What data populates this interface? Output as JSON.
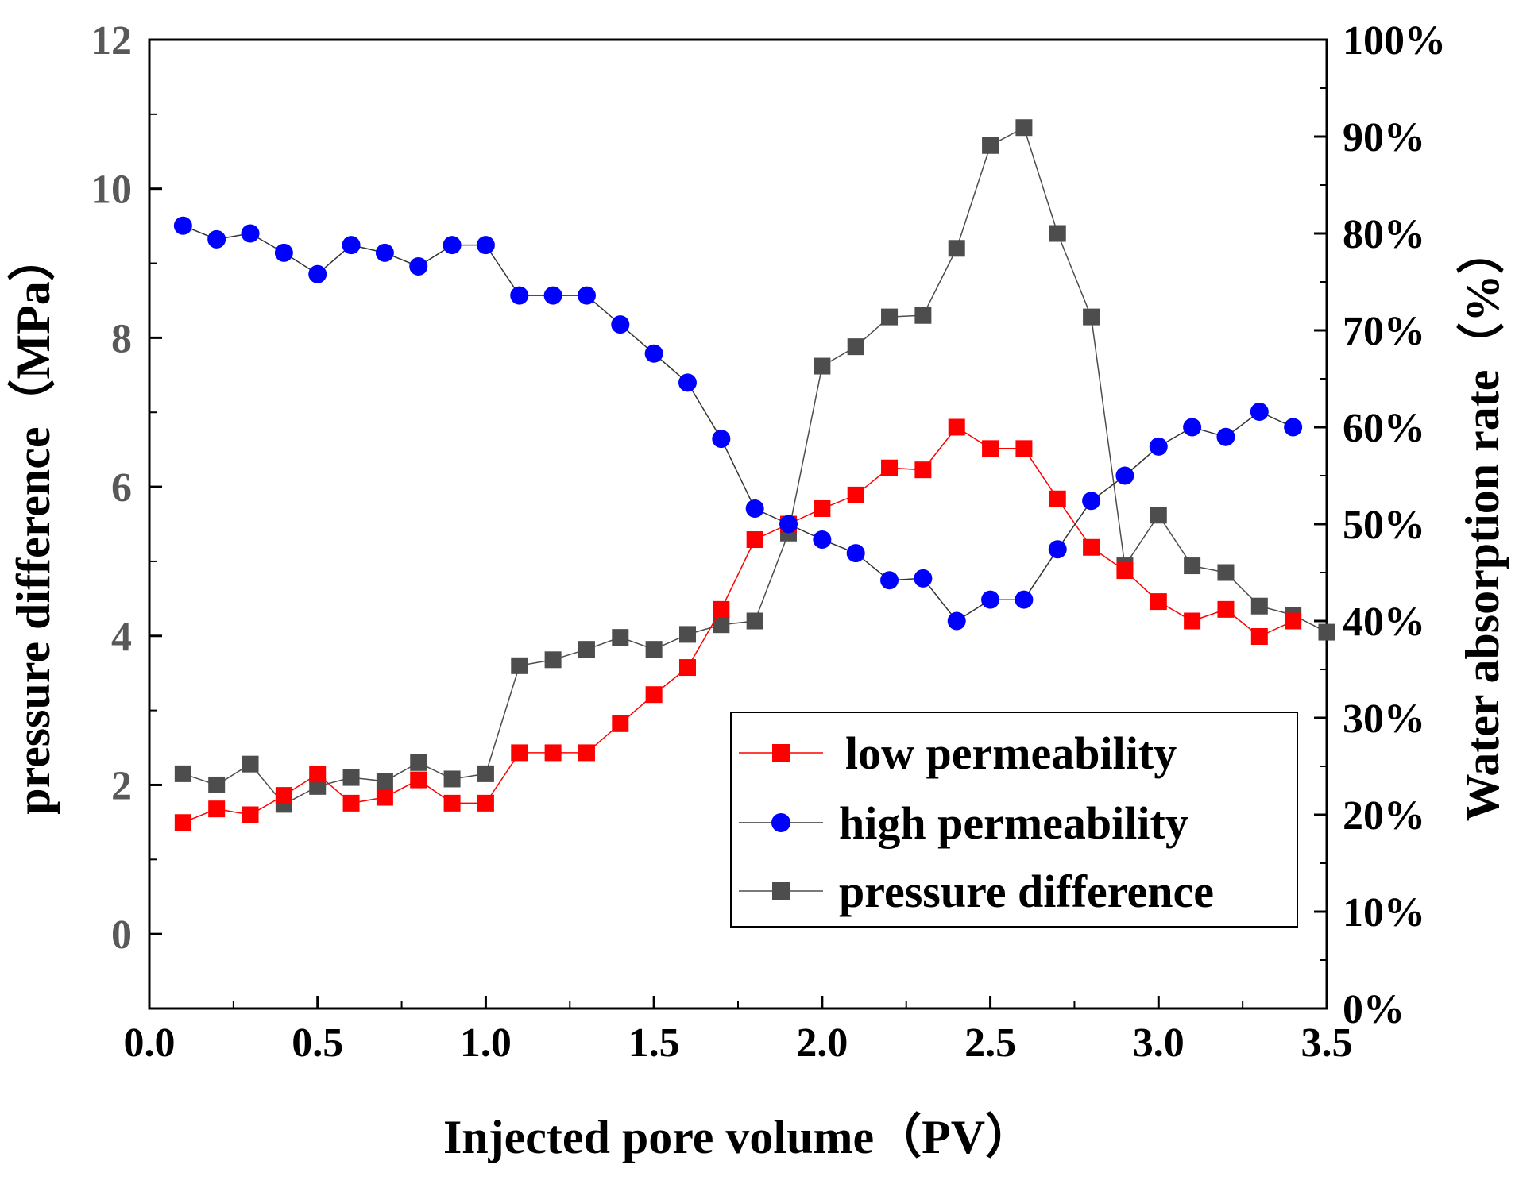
{
  "chart_data": {
    "type": "line",
    "xlabel": "Injected pore volume（PV）",
    "ylabel_left": "pressure difference（MPa）",
    "ylabel_right": "Water absorption rate（%）",
    "xlim": [
      0,
      3.5
    ],
    "ylim_left": [
      -1,
      12
    ],
    "ylim_right": [
      0,
      100
    ],
    "x_ticks": [
      {
        "value": 0.0,
        "label": "0.0"
      },
      {
        "value": 0.5,
        "label": "0.5"
      },
      {
        "value": 1.0,
        "label": "1.0"
      },
      {
        "value": 1.5,
        "label": "1.5"
      },
      {
        "value": 2.0,
        "label": "2.0"
      },
      {
        "value": 2.5,
        "label": "2.5"
      },
      {
        "value": 3.0,
        "label": "3.0"
      },
      {
        "value": 3.5,
        "label": "3.5"
      }
    ],
    "left_ticks": [
      {
        "value": 0,
        "label": "0"
      },
      {
        "value": 2,
        "label": "2"
      },
      {
        "value": 4,
        "label": "4"
      },
      {
        "value": 6,
        "label": "6"
      },
      {
        "value": 8,
        "label": "8"
      },
      {
        "value": 10,
        "label": "10"
      },
      {
        "value": 12,
        "label": "12"
      }
    ],
    "right_ticks": [
      {
        "value": 0,
        "label": "0%"
      },
      {
        "value": 10,
        "label": "10%"
      },
      {
        "value": 20,
        "label": "20%"
      },
      {
        "value": 30,
        "label": "30%"
      },
      {
        "value": 40,
        "label": "40%"
      },
      {
        "value": 50,
        "label": "50%"
      },
      {
        "value": 60,
        "label": "60%"
      },
      {
        "value": 70,
        "label": "70%"
      },
      {
        "value": 80,
        "label": "80%"
      },
      {
        "value": 90,
        "label": "90%"
      },
      {
        "value": 100,
        "label": "100%"
      }
    ],
    "x": [
      0.1,
      0.2,
      0.3,
      0.4,
      0.5,
      0.6,
      0.7,
      0.8,
      0.9,
      1.0,
      1.1,
      1.2,
      1.3,
      1.4,
      1.5,
      1.6,
      1.7,
      1.8,
      1.9,
      2.0,
      2.1,
      2.2,
      2.3,
      2.4,
      2.5,
      2.6,
      2.7,
      2.8,
      2.9,
      3.0,
      3.1,
      3.2,
      3.3,
      3.4,
      3.5
    ],
    "series": [
      {
        "name": "low permeability",
        "axis": "right",
        "color": "#ff0000",
        "marker": "square",
        "x": [
          0.1,
          0.2,
          0.3,
          0.4,
          0.5,
          0.6,
          0.7,
          0.8,
          0.9,
          1.0,
          1.1,
          1.2,
          1.3,
          1.4,
          1.5,
          1.6,
          1.7,
          1.8,
          1.9,
          2.0,
          2.1,
          2.2,
          2.3,
          2.4,
          2.5,
          2.6,
          2.7,
          2.8,
          2.9,
          3.0,
          3.1,
          3.2,
          3.3,
          3.4
        ],
        "values": [
          19.2,
          20.6,
          20.0,
          22.0,
          24.2,
          21.2,
          21.8,
          23.6,
          21.2,
          21.2,
          26.4,
          26.4,
          26.4,
          29.4,
          32.4,
          35.2,
          41.2,
          48.4,
          50.0,
          51.6,
          53.0,
          55.8,
          55.6,
          60.0,
          57.8,
          57.8,
          52.6,
          47.6,
          45.2,
          42.0,
          40.0,
          41.2,
          38.4,
          40.0
        ]
      },
      {
        "name": "high permeability",
        "axis": "right",
        "color": "#0000ff",
        "marker": "circle",
        "x": [
          0.1,
          0.2,
          0.3,
          0.4,
          0.5,
          0.6,
          0.7,
          0.8,
          0.9,
          1.0,
          1.1,
          1.2,
          1.3,
          1.4,
          1.5,
          1.6,
          1.7,
          1.8,
          1.9,
          2.0,
          2.1,
          2.2,
          2.3,
          2.4,
          2.5,
          2.6,
          2.7,
          2.8,
          2.9,
          3.0,
          3.1,
          3.2,
          3.3,
          3.4
        ],
        "values": [
          80.8,
          79.4,
          80.0,
          78.0,
          75.8,
          78.8,
          78.0,
          76.6,
          78.8,
          78.8,
          73.6,
          73.6,
          73.6,
          70.6,
          67.6,
          64.6,
          58.8,
          51.6,
          50.0,
          48.4,
          47.0,
          44.2,
          44.4,
          40.0,
          42.2,
          42.2,
          47.4,
          52.4,
          55.0,
          58.0,
          60.0,
          59.0,
          61.6,
          60.0
        ]
      },
      {
        "name": "pressure difference",
        "axis": "left",
        "color": "#4d4d4d",
        "marker": "square",
        "x": [
          0.1,
          0.2,
          0.3,
          0.4,
          0.5,
          0.6,
          0.7,
          0.8,
          0.9,
          1.0,
          1.1,
          1.2,
          1.3,
          1.4,
          1.5,
          1.6,
          1.7,
          1.8,
          1.9,
          2.0,
          2.1,
          2.2,
          2.3,
          2.4,
          2.5,
          2.6,
          2.7,
          2.8,
          2.9,
          3.0,
          3.1,
          3.2,
          3.3,
          3.4,
          3.5
        ],
        "values": [
          2.15,
          2.0,
          2.28,
          1.74,
          1.98,
          2.1,
          2.05,
          2.3,
          2.08,
          2.15,
          3.6,
          3.68,
          3.82,
          3.98,
          3.82,
          4.02,
          4.15,
          4.2,
          5.38,
          7.62,
          7.88,
          8.28,
          8.3,
          9.2,
          10.58,
          10.82,
          9.4,
          8.28,
          4.94,
          5.62,
          4.94,
          4.85,
          4.4,
          4.28,
          4.05
        ]
      }
    ]
  }
}
